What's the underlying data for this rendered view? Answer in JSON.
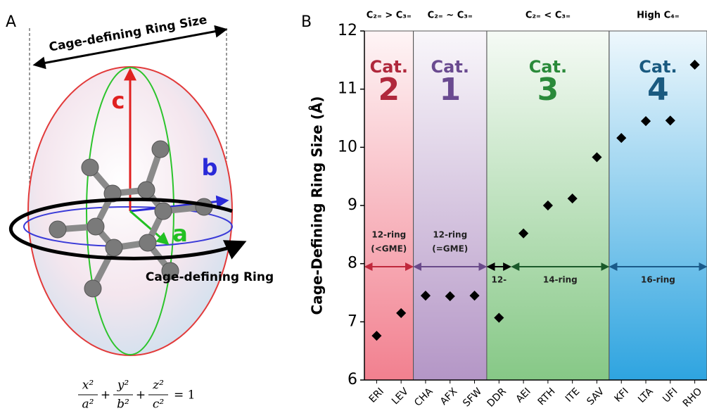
{
  "panel_a": {
    "label": "A",
    "title": "Cage-defining Ring Size",
    "axis_c": "c",
    "axis_b": "b",
    "axis_a": "a",
    "ring_label": "Cage-defining Ring",
    "equation_terms": [
      {
        "num": "x²",
        "den": "a²"
      },
      {
        "num": "y²",
        "den": "b²"
      },
      {
        "num": "z²",
        "den": "c²"
      }
    ],
    "equation_operator": "+",
    "equation_rhs": "= 1"
  },
  "chart_data": {
    "type": "scatter",
    "panel_label": "B",
    "y_label": "Cage-Defining Ring Size (Å)",
    "categories": [
      "ERI",
      "LEV",
      "CHA",
      "AFX",
      "SFW",
      "DDR",
      "AEI",
      "RTH",
      "ITE",
      "SAV",
      "KFI",
      "LTA",
      "UFI",
      "RHO"
    ],
    "values": [
      6.76,
      7.15,
      7.45,
      7.44,
      7.45,
      7.07,
      8.52,
      9.0,
      9.12,
      9.83,
      10.16,
      10.45,
      10.46,
      11.42
    ],
    "color": "#000000",
    "ylim": [
      6,
      12
    ],
    "yticks": [
      6,
      7,
      8,
      9,
      10,
      11,
      12
    ],
    "regions": [
      {
        "header": "C₂₌ > C₃₌",
        "label": "Cat.",
        "number": "2",
        "from": "ERI",
        "to": "LEV",
        "color": "#f2808f",
        "label_color": "#b0283c"
      },
      {
        "header": "C₂₌ ~ C₃₌",
        "label": "Cat.",
        "number": "1",
        "from": "CHA",
        "to": "SFW",
        "color": "#b496c6",
        "label_color": "#6a4a90"
      },
      {
        "header": "C₂₌ < C₃₌",
        "label": "Cat.",
        "number": "3",
        "from": "DDR",
        "to": "SAV",
        "color": "#86c886",
        "label_color": "#2a8a3a"
      },
      {
        "header": "High C₄₌",
        "label": "Cat.",
        "number": "4",
        "from": "KFI",
        "to": "RHO",
        "color": "#2ea4e0",
        "label_color": "#1a5a80"
      }
    ],
    "ring_spans": [
      {
        "lines": [
          "12-ring",
          "(<GME)"
        ],
        "from": "ERI",
        "to": "LEV",
        "color": "#c0283c"
      },
      {
        "lines": [
          "12-ring",
          "(=GME)"
        ],
        "from": "CHA",
        "to": "SFW",
        "color": "#6a4a8a"
      },
      {
        "lines": [
          "12-"
        ],
        "from": "DDR",
        "to": "DDR",
        "color": "#000000"
      },
      {
        "lines": [
          "14-ring"
        ],
        "from": "AEI",
        "to": "SAV",
        "color": "#1a5a2a"
      },
      {
        "lines": [
          "16-ring"
        ],
        "from": "KFI",
        "to": "RHO",
        "color": "#1a5a8a"
      }
    ]
  }
}
